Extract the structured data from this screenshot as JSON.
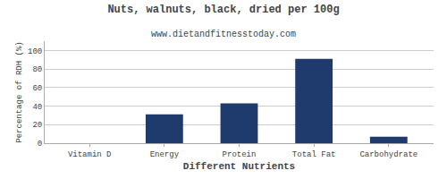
{
  "chart_data": {
    "type": "bar",
    "title": "Nuts, walnuts, black, dried per 100g",
    "subtitle": "www.dietandfitnesstoday.com",
    "xlabel": "Different Nutrients",
    "ylabel": "Percentage of RDH (%)",
    "categories": [
      "Vitamin D",
      "Energy",
      "Protein",
      "Total Fat",
      "Carbohydrate"
    ],
    "values": [
      0,
      31,
      43,
      91,
      7
    ],
    "color": "#1f3b6e",
    "ylim": [
      0,
      110
    ],
    "yticks": [
      0,
      20,
      40,
      60,
      80,
      100
    ],
    "grid": true
  }
}
